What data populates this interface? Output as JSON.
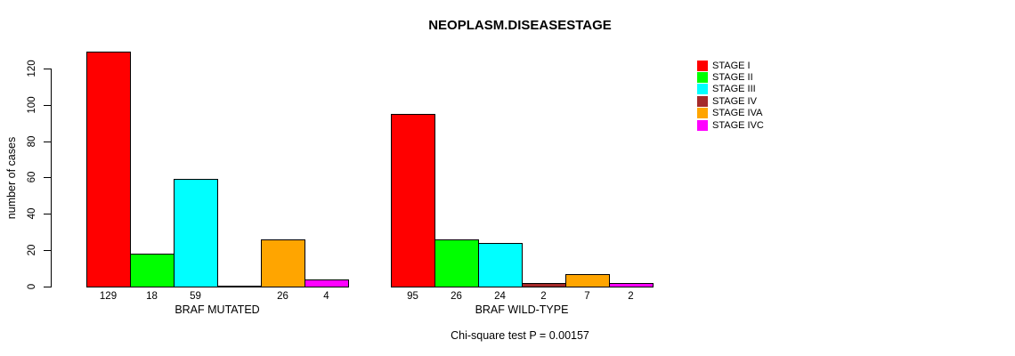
{
  "chart_data": {
    "type": "bar",
    "title": "NEOPLASM.DISEASESTAGE",
    "ylabel": "number of cases",
    "xlabel": "",
    "ylim": [
      0,
      120
    ],
    "yticks": [
      0,
      20,
      40,
      60,
      80,
      100,
      120
    ],
    "grid": false,
    "legend_position": "right",
    "categories": [
      "STAGE I",
      "STAGE II",
      "STAGE III",
      "STAGE IV",
      "STAGE IVA",
      "STAGE IVC"
    ],
    "colors": [
      "#ff0000",
      "#00ff00",
      "#00ffff",
      "#a52a2a",
      "#ffa500",
      "#ff00ff"
    ],
    "groups": [
      {
        "label": "BRAF MUTATED",
        "values": [
          129,
          18,
          59,
          0,
          26,
          4
        ],
        "bar_labels": [
          "129",
          "18",
          "59",
          "",
          "26",
          "4"
        ]
      },
      {
        "label": "BRAF WILD-TYPE",
        "values": [
          95,
          26,
          24,
          2,
          7,
          2
        ],
        "bar_labels": [
          "95",
          "26",
          "24",
          "2",
          "7",
          "2"
        ]
      }
    ],
    "annotation": "Chi-square test P = 0.00157"
  }
}
